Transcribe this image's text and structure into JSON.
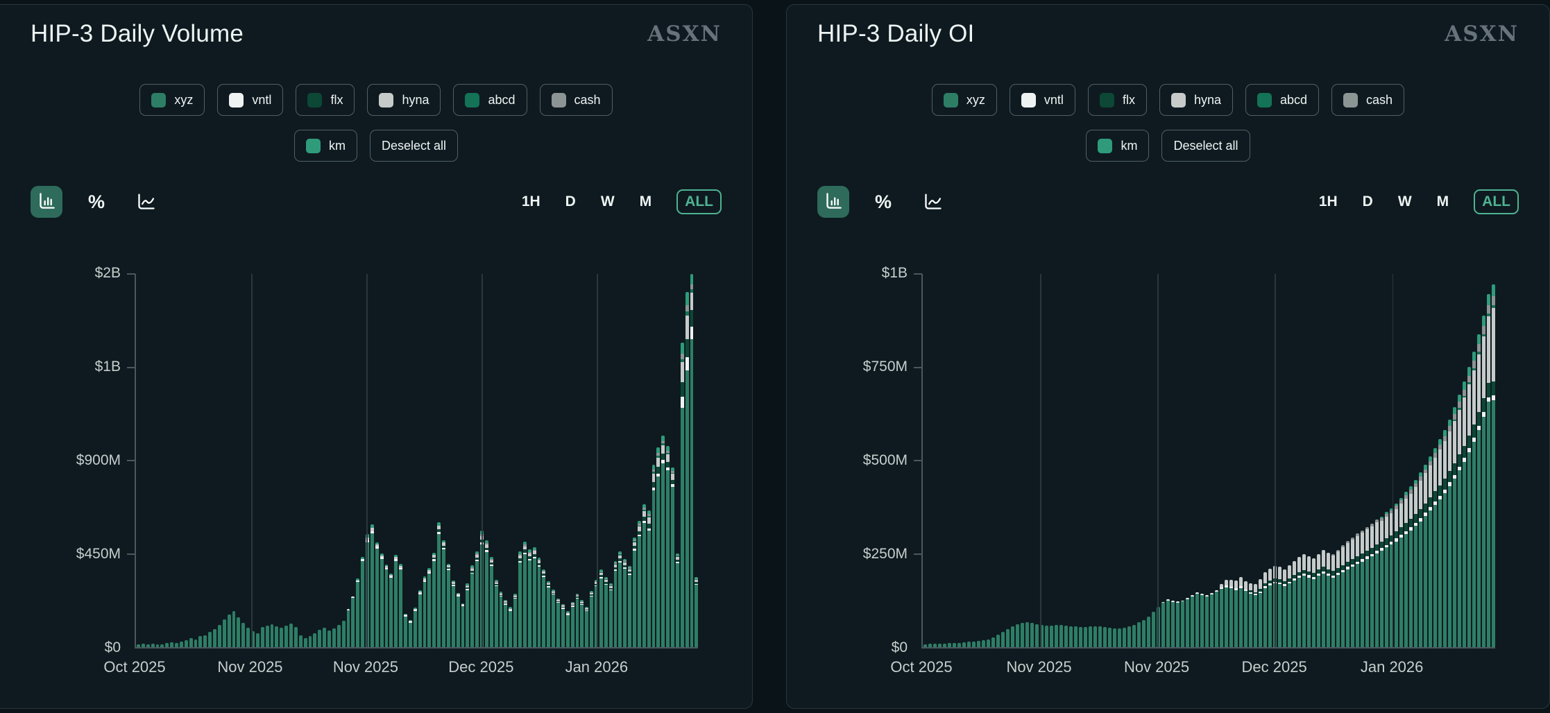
{
  "colors": {
    "page_bg": "#0a1317",
    "card_bg": "#0e1a20",
    "card_border": "#27363c",
    "text": "#eef4f3",
    "muted_label": "#c7cecd",
    "axis": "#4a585f",
    "gridline": "#2a373d",
    "watermark": "#67737b",
    "accent_teal": "#4fb392",
    "selected_icon_bg": "#2e6b5a",
    "series": {
      "xyz": "#2e7e66",
      "vntl": "#eef2f1",
      "flx": "#0d4736",
      "hyna": "#c6cbca",
      "abcd": "#147257",
      "cash": "#8d9494",
      "km": "#2f9b7b"
    }
  },
  "panels": [
    {
      "title": "HIP-3 Daily Volume",
      "watermark": "ASXN",
      "legend": {
        "row1": [
          "xyz",
          "vntl",
          "flx",
          "hyna",
          "abcd",
          "cash"
        ],
        "row2": [
          "km"
        ],
        "deselect_label": "Deselect all"
      },
      "toolbar": {
        "chart_type_icons": [
          "bar-chart",
          "percent",
          "line-chart"
        ],
        "selected_chart_type": "bar-chart",
        "percent_label": "%",
        "ranges": [
          "1H",
          "D",
          "W",
          "M",
          "ALL"
        ],
        "selected_range": "ALL"
      }
    },
    {
      "title": "HIP-3 Daily OI",
      "watermark": "ASXN",
      "legend": {
        "row1": [
          "xyz",
          "vntl",
          "flx",
          "hyna",
          "abcd",
          "cash"
        ],
        "row2": [
          "km"
        ],
        "deselect_label": "Deselect all"
      },
      "toolbar": {
        "chart_type_icons": [
          "bar-chart",
          "percent",
          "line-chart"
        ],
        "selected_chart_type": "bar-chart",
        "percent_label": "%",
        "ranges": [
          "1H",
          "D",
          "W",
          "M",
          "ALL"
        ],
        "selected_range": "ALL"
      }
    }
  ],
  "chart_data": [
    {
      "type": "bar",
      "stacked": true,
      "title": "HIP-3 Daily Volume",
      "unit": "USD millions per day",
      "n_points": 118,
      "x_range": "Oct 2025 - Jan 2026, daily bars",
      "x_tick_labels": [
        "Oct 2025",
        "Nov 2025",
        "Nov 2025",
        "Dec 2025",
        "Jan 2026"
      ],
      "x_tick_positions_pct": [
        0,
        20.5,
        41,
        61.5,
        82
      ],
      "y_tick_labels_bottom_up": [
        "$0",
        "$450M",
        "$900M",
        "$1B",
        "$2B"
      ],
      "y_max": 1800,
      "grid": "vertical-only",
      "legend_position": "top",
      "series": [
        {
          "name": "xyz",
          "lead_zeros": 0,
          "values": [
            12,
            16,
            14,
            18,
            15,
            13,
            20,
            24,
            19,
            26,
            34,
            42,
            38,
            52,
            58,
            72,
            88,
            108,
            135,
            158,
            172,
            145,
            118,
            92,
            78,
            68,
            98,
            104,
            110,
            99,
            93,
            103,
            113,
            98,
            58,
            44,
            54,
            68,
            84,
            94,
            79,
            89,
            108,
            128,
            178,
            238,
            315,
            415,
            505,
            548,
            475,
            425,
            375,
            335,
            415,
            375,
            148,
            118,
            175,
            255,
            315,
            355,
            415,
            545,
            470,
            370,
            295,
            245,
            198,
            275,
            352,
            412,
            495,
            458,
            390,
            292,
            242,
            205,
            175,
            232,
            408,
            448,
            418,
            428,
            388,
            338,
            288,
            252,
            212,
            185,
            155,
            195,
            232,
            202,
            172,
            242,
            292,
            330,
            300,
            272,
            368,
            408,
            378,
            348,
            465,
            532,
            598,
            560,
            755,
            820,
            885,
            850,
            770,
            405,
            1150,
            1330,
            1480,
            300
          ]
        },
        {
          "name": "vntl",
          "lead_zeros": 44,
          "values": [
            4,
            5,
            6,
            8,
            10,
            10,
            8,
            7,
            6,
            6,
            7,
            6,
            3,
            3,
            4,
            5,
            6,
            6,
            7,
            9,
            8,
            6,
            5,
            4,
            4,
            5,
            6,
            7,
            8,
            8,
            7,
            5,
            4,
            4,
            3,
            4,
            7,
            7,
            7,
            7,
            6,
            6,
            5,
            4,
            4,
            3,
            3,
            4,
            4,
            4,
            3,
            4,
            5,
            6,
            5,
            5,
            6,
            7,
            6,
            6,
            8,
            9,
            10,
            10,
            12,
            14,
            14,
            13,
            12,
            6,
            55,
            65,
            60,
            5
          ]
        },
        {
          "name": "flx",
          "lead_zeros": 59,
          "values": [
            0,
            0,
            0,
            8,
            12,
            10,
            6,
            5,
            0,
            0,
            6,
            8,
            10,
            14,
            12,
            9,
            6,
            5,
            4,
            0,
            5,
            12,
            14,
            12,
            12,
            10,
            8,
            6,
            5,
            4,
            4,
            0,
            4,
            6,
            5,
            4,
            6,
            8,
            10,
            8,
            7,
            10,
            12,
            10,
            9,
            14,
            16,
            20,
            22,
            28,
            32,
            30,
            26,
            20,
            10,
            70,
            85,
            80,
            8
          ]
        },
        {
          "name": "hyna",
          "lead_zeros": 48,
          "values": [
            12,
            15,
            10,
            8,
            8,
            6,
            10,
            8,
            4,
            3,
            5,
            8,
            10,
            10,
            12,
            18,
            14,
            10,
            8,
            6,
            5,
            8,
            12,
            14,
            18,
            16,
            12,
            8,
            6,
            5,
            4,
            6,
            14,
            16,
            14,
            15,
            12,
            10,
            8,
            6,
            5,
            5,
            4,
            5,
            6,
            6,
            5,
            7,
            8,
            10,
            9,
            8,
            12,
            14,
            12,
            11,
            18,
            22,
            26,
            30,
            38,
            45,
            42,
            38,
            30,
            14,
            95,
            115,
            85,
            10
          ]
        },
        {
          "name": "abcd",
          "lead_zeros": 97,
          "values": [
            4,
            3,
            3,
            4,
            5,
            4,
            4,
            5,
            6,
            7,
            8,
            9,
            10,
            9,
            8,
            6,
            3,
            15,
            18,
            16,
            2
          ]
        },
        {
          "name": "cash",
          "lead_zeros": 69,
          "values": [
            4,
            5,
            6,
            8,
            7,
            5,
            4,
            3,
            3,
            2,
            3,
            6,
            7,
            6,
            6,
            5,
            4,
            4,
            3,
            3,
            2,
            2,
            3,
            3,
            3,
            2,
            3,
            4,
            4,
            4,
            3,
            5,
            5,
            5,
            4,
            6,
            7,
            8,
            9,
            11,
            12,
            11,
            10,
            8,
            4,
            25,
            30,
            22,
            3
          ]
        },
        {
          "name": "km",
          "lead_zeros": 44,
          "values": [
            0,
            0,
            8,
            12,
            16,
            18,
            12,
            10,
            8,
            8,
            12,
            10,
            4,
            3,
            5,
            7,
            9,
            10,
            12,
            17,
            13,
            9,
            7,
            5,
            4,
            7,
            10,
            12,
            16,
            14,
            10,
            7,
            5,
            4,
            3,
            5,
            12,
            14,
            12,
            12,
            10,
            8,
            7,
            5,
            4,
            4,
            3,
            4,
            5,
            5,
            4,
            5,
            7,
            8,
            7,
            6,
            9,
            10,
            9,
            8,
            12,
            14,
            17,
            19,
            24,
            28,
            26,
            23,
            18,
            8,
            55,
            65,
            50,
            6
          ]
        }
      ]
    },
    {
      "type": "bar",
      "stacked": true,
      "title": "HIP-3 Daily OI",
      "unit": "USD millions",
      "n_points": 118,
      "x_range": "Oct 2025 - Jan 2026, daily bars",
      "x_tick_labels": [
        "Oct 2025",
        "Nov 2025",
        "Nov 2025",
        "Dec 2025",
        "Jan 2026"
      ],
      "x_tick_positions_pct": [
        0,
        20.5,
        41,
        61.5,
        82
      ],
      "y_tick_labels_bottom_up": [
        "$0",
        "$250M",
        "$500M",
        "$750M",
        "$1B"
      ],
      "y_max": 1000,
      "grid": "vertical-only",
      "legend_position": "top",
      "series": [
        {
          "name": "xyz",
          "lead_zeros": 0,
          "values": [
            8,
            9,
            9,
            10,
            10,
            11,
            11,
            12,
            13,
            14,
            15,
            16,
            18,
            21,
            26,
            33,
            41,
            48,
            55,
            61,
            64,
            66,
            64,
            61,
            59,
            58,
            58,
            60,
            59,
            57,
            56,
            55,
            54,
            54,
            55,
            56,
            55,
            53,
            51,
            50,
            50,
            52,
            56,
            60,
            66,
            73,
            82,
            95,
            108,
            118,
            124,
            121,
            119,
            122,
            128,
            135,
            142,
            138,
            135,
            140,
            148,
            155,
            160,
            157,
            152,
            158,
            150,
            142,
            138,
            145,
            158,
            165,
            170,
            168,
            163,
            170,
            178,
            185,
            190,
            186,
            182,
            190,
            196,
            190,
            185,
            192,
            200,
            208,
            215,
            222,
            228,
            235,
            242,
            250,
            258,
            266,
            274,
            282,
            292,
            302,
            312,
            324,
            336,
            350,
            365,
            380,
            395,
            412,
            430,
            450,
            472,
            495,
            520,
            548,
            580,
            615,
            655,
            660
          ]
        },
        {
          "name": "vntl",
          "lead_zeros": 49,
          "values": [
            3,
            3,
            3,
            3,
            3,
            4,
            4,
            4,
            4,
            4,
            4,
            4,
            4,
            5,
            5,
            5,
            5,
            4,
            4,
            4,
            4,
            5,
            5,
            5,
            5,
            5,
            5,
            5,
            5,
            6,
            6,
            6,
            6,
            6,
            6,
            6,
            6,
            6,
            6,
            6,
            6,
            7,
            7,
            7,
            7,
            7,
            7,
            7,
            8,
            8,
            8,
            8,
            8,
            8,
            9,
            9,
            9,
            9,
            9,
            10,
            10,
            10,
            10,
            11,
            11,
            11,
            12,
            12,
            12
          ]
        },
        {
          "name": "flx",
          "lead_zeros": 67,
          "values": [
            5,
            5,
            6,
            7,
            7,
            8,
            8,
            8,
            9,
            9,
            10,
            10,
            10,
            11,
            11,
            12,
            12,
            12,
            13,
            13,
            14,
            14,
            15,
            15,
            16,
            16,
            17,
            17,
            18,
            18,
            19,
            20,
            21,
            22,
            23,
            24,
            25,
            26,
            27,
            28,
            29,
            30,
            31,
            32,
            33,
            34,
            35,
            36,
            37,
            38,
            38
          ]
        },
        {
          "name": "hyna",
          "lead_zeros": 61,
          "values": [
            10,
            14,
            18,
            20,
            24,
            22,
            20,
            22,
            26,
            30,
            32,
            34,
            33,
            32,
            35,
            38,
            40,
            42,
            40,
            39,
            42,
            45,
            43,
            42,
            45,
            48,
            50,
            52,
            54,
            55,
            57,
            58,
            60,
            55,
            57,
            58,
            60,
            63,
            66,
            68,
            72,
            76,
            80,
            85,
            90,
            95,
            100,
            106,
            112,
            120,
            128,
            136,
            145,
            155,
            165,
            178,
            195
          ]
        },
        {
          "name": "abcd",
          "lead_zeros": 109,
          "values": [
            4,
            5,
            5,
            6,
            6,
            7,
            7,
            8,
            8
          ]
        },
        {
          "name": "cash",
          "lead_zeros": 84,
          "values": [
            4,
            4,
            5,
            5,
            5,
            6,
            6,
            6,
            7,
            7,
            7,
            8,
            8,
            8,
            9,
            9,
            10,
            10,
            11,
            11,
            12,
            12,
            13,
            13,
            14,
            15,
            16,
            17,
            18,
            19,
            20,
            21,
            22,
            24
          ]
        },
        {
          "name": "km",
          "lead_zeros": 94,
          "values": [
            5,
            6,
            6,
            7,
            7,
            8,
            9,
            10,
            11,
            12,
            13,
            14,
            15,
            16,
            17,
            18,
            20,
            21,
            23,
            25,
            27,
            28,
            30,
            32
          ]
        }
      ]
    }
  ]
}
